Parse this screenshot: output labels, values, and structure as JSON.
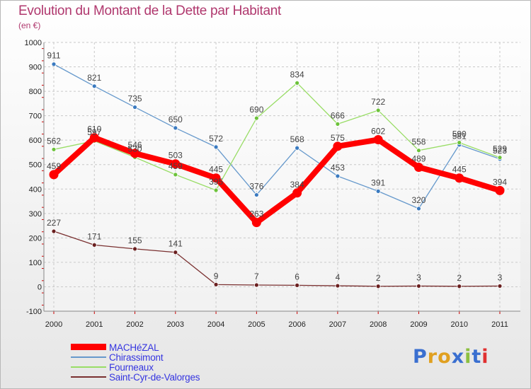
{
  "title": "Evolution du Montant de la Dette par Habitant",
  "subtitle": "(en €)",
  "logo_text": "Proxiti",
  "chart_data": {
    "type": "line",
    "title": "Evolution du Montant de la Dette par Habitant",
    "subtitle": "(en €)",
    "x": [
      "2000",
      "2001",
      "2002",
      "2003",
      "2004",
      "2005",
      "2006",
      "2007",
      "2008",
      "2009",
      "2010",
      "2011"
    ],
    "y_ticks": [
      "-100",
      "0",
      "100",
      "200",
      "300",
      "400",
      "500",
      "600",
      "700",
      "800",
      "900",
      "1000"
    ],
    "ylim": [
      -100,
      1000
    ],
    "grid": true,
    "legend_position": "bottom-left",
    "series": [
      {
        "name": "MACHéZAL",
        "color": "#ff0000",
        "values": [
          459,
          610,
          546,
          503,
          445,
          263,
          384,
          575,
          602,
          489,
          445,
          394
        ]
      },
      {
        "name": "Chirassimont",
        "color": "#6699cc",
        "values": [
          911,
          821,
          735,
          650,
          572,
          376,
          568,
          453,
          391,
          320,
          581,
          523
        ]
      },
      {
        "name": "Fourneaux",
        "color": "#99dd66",
        "values": [
          562,
          597,
          530,
          459,
          395,
          690,
          834,
          666,
          722,
          558,
          590,
          529
        ]
      },
      {
        "name": "Saint-Cyr-de-Valorges",
        "color": "#7a3030",
        "values": [
          227,
          171,
          155,
          141,
          9,
          7,
          6,
          4,
          2,
          3,
          2,
          3
        ]
      }
    ]
  }
}
